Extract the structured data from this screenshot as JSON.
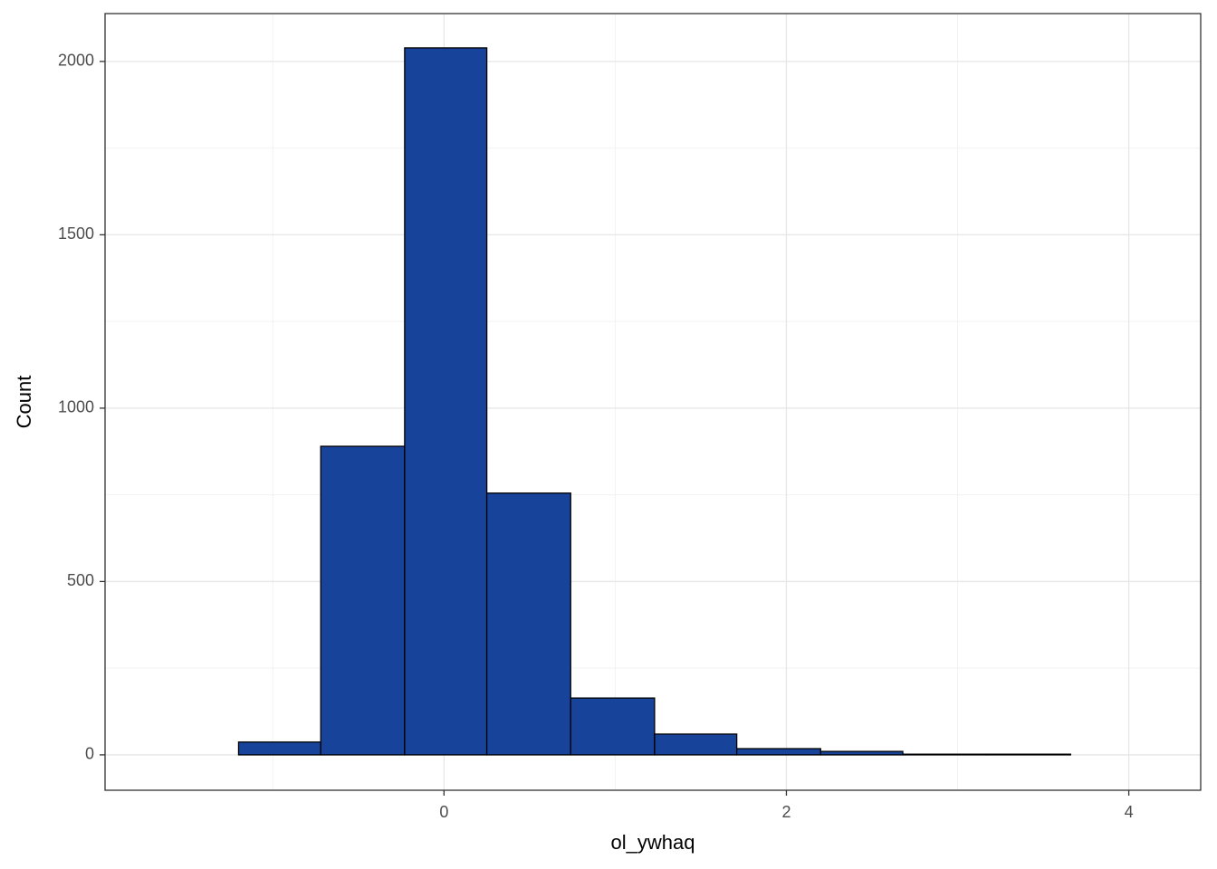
{
  "chart_data": {
    "type": "histogram",
    "x_label": "ol_ywhaq",
    "y_label": "Count",
    "bins": [
      -1.69,
      -1.2,
      -0.72,
      -0.23,
      0.25,
      0.74,
      1.23,
      1.71,
      2.2,
      2.68,
      3.17,
      3.66,
      4.14
    ],
    "values": [
      0,
      37,
      890,
      2039,
      755,
      164,
      60,
      18,
      10,
      2,
      2,
      0
    ],
    "color": "#17439b",
    "edge_color": "#000000",
    "xlim": [
      -1.98,
      4.42
    ],
    "xticks": [
      0,
      2,
      4
    ],
    "ylim": [
      -102,
      2138
    ],
    "yticks": [
      0,
      500,
      1000,
      1500,
      2000
    ],
    "grid": true
  }
}
